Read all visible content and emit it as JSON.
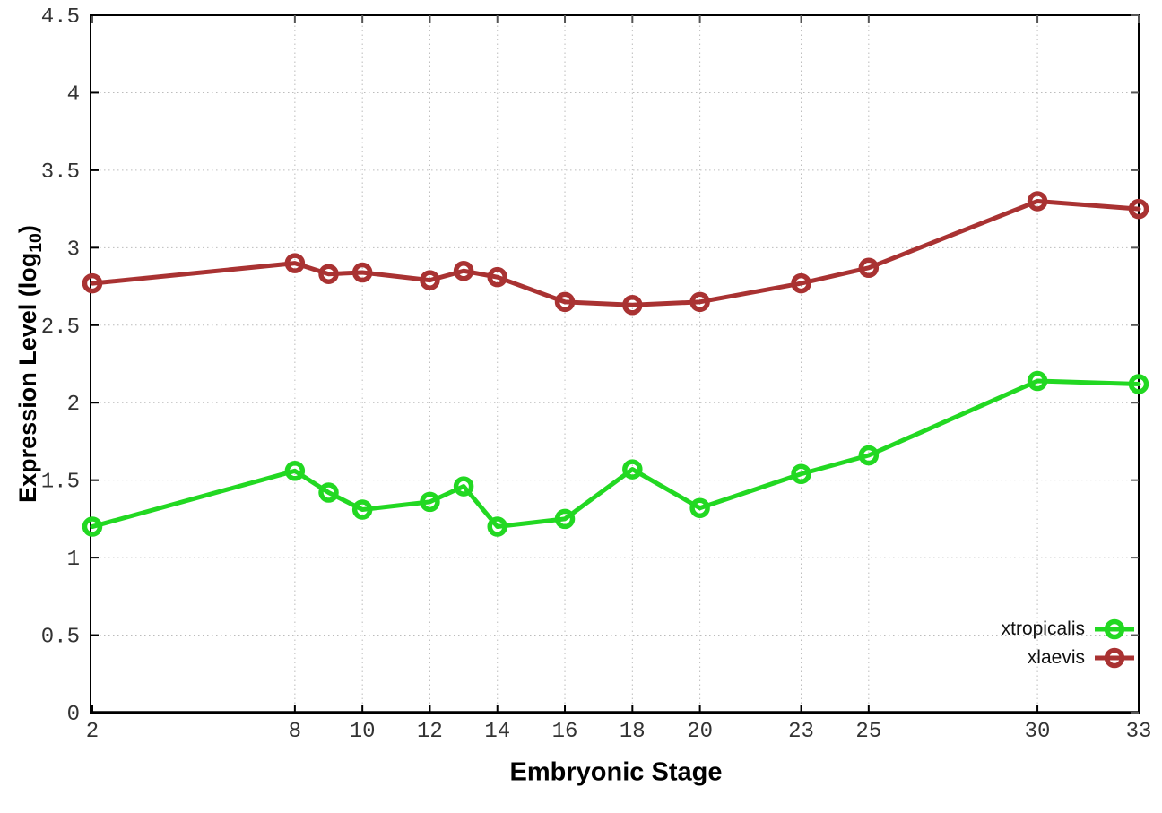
{
  "chart_data": {
    "type": "line",
    "title": "",
    "xlabel": "Embryonic Stage",
    "ylabel_parts": {
      "pre": "Expression Level (log",
      "sub": "10",
      "post": ")"
    },
    "xlim": [
      2,
      33
    ],
    "ylim": [
      0,
      4.5
    ],
    "grid": true,
    "legend_position": "bottom-right",
    "x": [
      2,
      8,
      9,
      10,
      12,
      13,
      14,
      16,
      18,
      20,
      23,
      25,
      30,
      33
    ],
    "xticks": [
      2,
      8,
      10,
      12,
      14,
      16,
      18,
      20,
      23,
      25,
      30,
      33
    ],
    "xtick_labels": [
      "2",
      "8",
      "10",
      "12",
      "14",
      "16",
      "18",
      "20",
      "23",
      "25",
      "30",
      "33"
    ],
    "yticks": [
      0,
      0.5,
      1,
      1.5,
      2,
      2.5,
      3,
      3.5,
      4,
      4.5
    ],
    "ytick_labels": [
      "0",
      "0.5",
      "1",
      "1.5",
      "2",
      "2.5",
      "3",
      "3.5",
      "4",
      "4.5"
    ],
    "series": [
      {
        "name": "xtropicalis",
        "color": "#22d822",
        "values": [
          1.2,
          1.56,
          1.42,
          1.31,
          1.36,
          1.46,
          1.2,
          1.25,
          1.57,
          1.32,
          1.54,
          1.66,
          2.14,
          2.12
        ]
      },
      {
        "name": "xlaevis",
        "color": "#a93232",
        "values": [
          2.77,
          2.9,
          2.83,
          2.84,
          2.79,
          2.85,
          2.81,
          2.65,
          2.63,
          2.65,
          2.77,
          2.87,
          3.3,
          3.25
        ]
      }
    ],
    "colors": {
      "border": "#000000",
      "grid": "#bcbcbc",
      "tick_text": "#333333"
    }
  }
}
